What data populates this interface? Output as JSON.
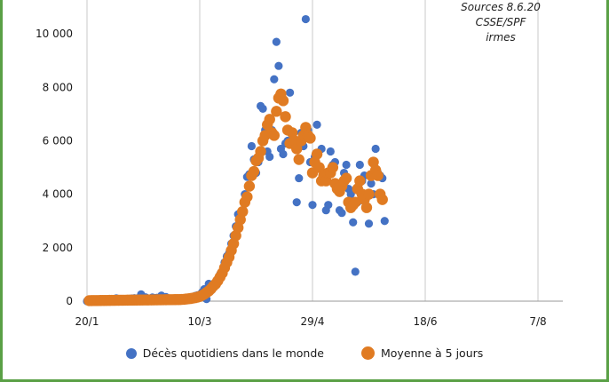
{
  "source_note": [
    "Sources 8.6.20",
    "CSSE/SPF",
    "irmes"
  ],
  "colors": {
    "daily": "#4472c4",
    "avg": "#e07b22",
    "grid": "#c8c8c8",
    "frame": "#5aa046"
  },
  "chart_data": {
    "type": "scatter",
    "title": "",
    "xlabel": "",
    "ylabel": "",
    "x_ticks": [
      "20/1",
      "10/3",
      "29/4",
      "18/6",
      "7/8"
    ],
    "y_ticks": [
      "0",
      "2 000",
      "4 000",
      "6 000",
      "8 000",
      "10 000"
    ],
    "xlim": [
      "2020-01-20",
      "2020-08-07"
    ],
    "ylim": [
      0,
      11000
    ],
    "grid": {
      "vertical": true,
      "horizontal": false
    },
    "legend": {
      "position": "bottom"
    },
    "series": [
      {
        "name": "Décès quotidiens dans le monde",
        "marker": "small-dot",
        "points": [
          [
            "2020-01-20",
            0
          ],
          [
            "2020-01-21",
            0
          ],
          [
            "2020-01-22",
            17
          ],
          [
            "2020-01-23",
            1
          ],
          [
            "2020-01-24",
            8
          ],
          [
            "2020-01-25",
            16
          ],
          [
            "2020-01-26",
            14
          ],
          [
            "2020-01-27",
            26
          ],
          [
            "2020-01-28",
            49
          ],
          [
            "2020-01-29",
            2
          ],
          [
            "2020-01-30",
            38
          ],
          [
            "2020-01-31",
            42
          ],
          [
            "2020-02-01",
            46
          ],
          [
            "2020-02-02",
            103
          ],
          [
            "2020-02-03",
            64
          ],
          [
            "2020-02-04",
            66
          ],
          [
            "2020-02-05",
            72
          ],
          [
            "2020-02-06",
            70
          ],
          [
            "2020-02-07",
            85
          ],
          [
            "2020-02-08",
            87
          ],
          [
            "2020-02-09",
            100
          ],
          [
            "2020-02-10",
            107
          ],
          [
            "2020-02-11",
            100
          ],
          [
            "2020-02-12",
            5
          ],
          [
            "2020-02-13",
            253
          ],
          [
            "2020-02-14",
            152
          ],
          [
            "2020-02-15",
            143
          ],
          [
            "2020-02-16",
            104
          ],
          [
            "2020-02-17",
            98
          ],
          [
            "2020-02-18",
            139
          ],
          [
            "2020-02-19",
            115
          ],
          [
            "2020-02-20",
            125
          ],
          [
            "2020-02-21",
            4
          ],
          [
            "2020-02-22",
            207
          ],
          [
            "2020-02-23",
            12
          ],
          [
            "2020-02-24",
            155
          ],
          [
            "2020-02-25",
            80
          ],
          [
            "2020-02-26",
            60
          ],
          [
            "2020-02-27",
            44
          ],
          [
            "2020-02-28",
            60
          ],
          [
            "2020-02-29",
            62
          ],
          [
            "2020-03-01",
            58
          ],
          [
            "2020-03-02",
            72
          ],
          [
            "2020-03-03",
            69
          ],
          [
            "2020-03-04",
            85
          ],
          [
            "2020-03-05",
            100
          ],
          [
            "2020-03-06",
            104
          ],
          [
            "2020-03-07",
            110
          ],
          [
            "2020-03-08",
            198
          ],
          [
            "2020-03-09",
            220
          ],
          [
            "2020-03-10",
            208
          ],
          [
            "2020-03-11",
            330
          ],
          [
            "2020-03-12",
            450
          ],
          [
            "2020-03-13",
            80
          ],
          [
            "2020-03-14",
            650
          ],
          [
            "2020-03-15",
            390
          ],
          [
            "2020-03-16",
            550
          ],
          [
            "2020-03-17",
            700
          ],
          [
            "2020-03-18",
            800
          ],
          [
            "2020-03-19",
            1000
          ],
          [
            "2020-03-20",
            1100
          ],
          [
            "2020-03-21",
            1450
          ],
          [
            "2020-03-22",
            1680
          ],
          [
            "2020-03-23",
            1800
          ],
          [
            "2020-03-24",
            2150
          ],
          [
            "2020-03-25",
            2450
          ],
          [
            "2020-03-26",
            2800
          ],
          [
            "2020-03-27",
            3250
          ],
          [
            "2020-03-28",
            3300
          ],
          [
            "2020-03-29",
            3400
          ],
          [
            "2020-03-30",
            4000
          ],
          [
            "2020-03-31",
            4650
          ],
          [
            "2020-04-01",
            4750
          ],
          [
            "2020-04-02",
            5800
          ],
          [
            "2020-04-03",
            5300
          ],
          [
            "2020-04-04",
            4800
          ],
          [
            "2020-04-05",
            5200
          ],
          [
            "2020-04-06",
            7300
          ],
          [
            "2020-04-07",
            7200
          ],
          [
            "2020-04-08",
            6400
          ],
          [
            "2020-04-09",
            5600
          ],
          [
            "2020-04-10",
            5400
          ],
          [
            "2020-04-11",
            6400
          ],
          [
            "2020-04-12",
            8300
          ],
          [
            "2020-04-13",
            9700
          ],
          [
            "2020-04-14",
            8800
          ],
          [
            "2020-04-15",
            5700
          ],
          [
            "2020-04-16",
            5500
          ],
          [
            "2020-04-17",
            5900
          ],
          [
            "2020-04-18",
            6000
          ],
          [
            "2020-04-19",
            7800
          ],
          [
            "2020-04-20",
            6000
          ],
          [
            "2020-04-21",
            5900
          ],
          [
            "2020-04-22",
            3700
          ],
          [
            "2020-04-23",
            4600
          ],
          [
            "2020-04-24",
            6300
          ],
          [
            "2020-04-25",
            5800
          ],
          [
            "2020-04-26",
            10550
          ],
          [
            "2020-04-27",
            6400
          ],
          [
            "2020-04-28",
            5200
          ],
          [
            "2020-04-29",
            3600
          ],
          [
            "2020-04-30",
            5400
          ],
          [
            "2020-05-01",
            6600
          ],
          [
            "2020-05-02",
            5000
          ],
          [
            "2020-05-03",
            5700
          ],
          [
            "2020-05-04",
            4500
          ],
          [
            "2020-05-05",
            3400
          ],
          [
            "2020-05-06",
            3600
          ],
          [
            "2020-05-07",
            5600
          ],
          [
            "2020-05-08",
            5100
          ],
          [
            "2020-05-09",
            5200
          ],
          [
            "2020-05-10",
            4400
          ],
          [
            "2020-05-11",
            3400
          ],
          [
            "2020-05-12",
            3300
          ],
          [
            "2020-05-13",
            4800
          ],
          [
            "2020-05-14",
            5100
          ],
          [
            "2020-05-15",
            4200
          ],
          [
            "2020-05-16",
            4000
          ],
          [
            "2020-05-17",
            2950
          ],
          [
            "2020-05-18",
            1100
          ],
          [
            "2020-05-19",
            3700
          ],
          [
            "2020-05-20",
            5100
          ],
          [
            "2020-05-21",
            4500
          ],
          [
            "2020-05-22",
            4700
          ],
          [
            "2020-05-23",
            4000
          ],
          [
            "2020-05-24",
            2900
          ],
          [
            "2020-05-25",
            4400
          ],
          [
            "2020-05-26",
            4000
          ],
          [
            "2020-05-27",
            5700
          ],
          [
            "2020-05-28",
            4800
          ],
          [
            "2020-05-29",
            4700
          ],
          [
            "2020-05-30",
            4600
          ],
          [
            "2020-05-31",
            3000
          ]
        ]
      },
      {
        "name": "Moyenne à 5 jours",
        "marker": "large-dot",
        "points": [
          [
            "2020-01-21",
            20
          ],
          [
            "2020-01-22",
            21
          ],
          [
            "2020-01-23",
            22
          ],
          [
            "2020-01-24",
            23
          ],
          [
            "2020-01-25",
            24
          ],
          [
            "2020-01-26",
            25
          ],
          [
            "2020-01-27",
            26
          ],
          [
            "2020-01-28",
            27
          ],
          [
            "2020-01-29",
            28
          ],
          [
            "2020-01-30",
            29
          ],
          [
            "2020-01-31",
            30
          ],
          [
            "2020-02-01",
            31
          ],
          [
            "2020-02-02",
            32
          ],
          [
            "2020-02-03",
            33
          ],
          [
            "2020-02-04",
            34
          ],
          [
            "2020-02-05",
            35
          ],
          [
            "2020-02-06",
            36
          ],
          [
            "2020-02-07",
            37
          ],
          [
            "2020-02-08",
            38
          ],
          [
            "2020-02-09",
            39
          ],
          [
            "2020-02-10",
            40
          ],
          [
            "2020-02-11",
            41
          ],
          [
            "2020-02-12",
            42
          ],
          [
            "2020-02-13",
            43
          ],
          [
            "2020-02-14",
            44
          ],
          [
            "2020-02-15",
            45
          ],
          [
            "2020-02-16",
            46
          ],
          [
            "2020-02-17",
            47
          ],
          [
            "2020-02-18",
            48
          ],
          [
            "2020-02-19",
            49
          ],
          [
            "2020-02-20",
            50
          ],
          [
            "2020-02-21",
            51
          ],
          [
            "2020-02-22",
            52
          ],
          [
            "2020-02-23",
            53
          ],
          [
            "2020-02-24",
            54
          ],
          [
            "2020-02-25",
            55
          ],
          [
            "2020-02-26",
            56
          ],
          [
            "2020-02-27",
            57
          ],
          [
            "2020-02-28",
            58
          ],
          [
            "2020-02-29",
            59
          ],
          [
            "2020-03-01",
            60
          ],
          [
            "2020-03-02",
            65
          ],
          [
            "2020-03-03",
            70
          ],
          [
            "2020-03-04",
            80
          ],
          [
            "2020-03-05",
            90
          ],
          [
            "2020-03-06",
            100
          ],
          [
            "2020-03-07",
            115
          ],
          [
            "2020-03-08",
            130
          ],
          [
            "2020-03-09",
            150
          ],
          [
            "2020-03-10",
            175
          ],
          [
            "2020-03-11",
            215
          ],
          [
            "2020-03-12",
            260
          ],
          [
            "2020-03-13",
            320
          ],
          [
            "2020-03-14",
            380
          ],
          [
            "2020-03-15",
            460
          ],
          [
            "2020-03-16",
            560
          ],
          [
            "2020-03-17",
            640
          ],
          [
            "2020-03-18",
            760
          ],
          [
            "2020-03-19",
            900
          ],
          [
            "2020-03-20",
            1050
          ],
          [
            "2020-03-21",
            1250
          ],
          [
            "2020-03-22",
            1450
          ],
          [
            "2020-03-23",
            1650
          ],
          [
            "2020-03-24",
            1900
          ],
          [
            "2020-03-25",
            2150
          ],
          [
            "2020-03-26",
            2450
          ],
          [
            "2020-03-27",
            2750
          ],
          [
            "2020-03-28",
            3050
          ],
          [
            "2020-03-29",
            3350
          ],
          [
            "2020-03-30",
            3700
          ],
          [
            "2020-03-31",
            3900
          ],
          [
            "2020-04-01",
            4300
          ],
          [
            "2020-04-02",
            4700
          ],
          [
            "2020-04-03",
            4850
          ],
          [
            "2020-04-04",
            5250
          ],
          [
            "2020-04-05",
            5350
          ],
          [
            "2020-04-06",
            5600
          ],
          [
            "2020-04-07",
            6000
          ],
          [
            "2020-04-08",
            6200
          ],
          [
            "2020-04-09",
            6600
          ],
          [
            "2020-04-10",
            6800
          ],
          [
            "2020-04-11",
            6300
          ],
          [
            "2020-04-12",
            6200
          ],
          [
            "2020-04-13",
            7100
          ],
          [
            "2020-04-14",
            7600
          ],
          [
            "2020-04-15",
            7750
          ],
          [
            "2020-04-16",
            7500
          ],
          [
            "2020-04-17",
            6900
          ],
          [
            "2020-04-18",
            6400
          ],
          [
            "2020-04-19",
            5900
          ],
          [
            "2020-04-20",
            6300
          ],
          [
            "2020-04-21",
            6000
          ],
          [
            "2020-04-22",
            5700
          ],
          [
            "2020-04-23",
            5300
          ],
          [
            "2020-04-24",
            6000
          ],
          [
            "2020-04-25",
            6200
          ],
          [
            "2020-04-26",
            6500
          ],
          [
            "2020-04-27",
            6200
          ],
          [
            "2020-04-28",
            6100
          ],
          [
            "2020-04-29",
            4800
          ],
          [
            "2020-04-30",
            5200
          ],
          [
            "2020-05-01",
            5500
          ],
          [
            "2020-05-02",
            5000
          ],
          [
            "2020-05-03",
            4500
          ],
          [
            "2020-05-04",
            4700
          ],
          [
            "2020-05-05",
            4500
          ],
          [
            "2020-05-06",
            4800
          ],
          [
            "2020-05-07",
            4800
          ],
          [
            "2020-05-08",
            5000
          ],
          [
            "2020-05-09",
            4400
          ],
          [
            "2020-05-10",
            4200
          ],
          [
            "2020-05-11",
            4100
          ],
          [
            "2020-05-12",
            4300
          ],
          [
            "2020-05-13",
            4500
          ],
          [
            "2020-05-14",
            4600
          ],
          [
            "2020-05-15",
            3700
          ],
          [
            "2020-05-16",
            3500
          ],
          [
            "2020-05-17",
            3600
          ],
          [
            "2020-05-18",
            3700
          ],
          [
            "2020-05-19",
            4200
          ],
          [
            "2020-05-20",
            4500
          ],
          [
            "2020-05-21",
            4000
          ],
          [
            "2020-05-22",
            3800
          ],
          [
            "2020-05-23",
            3500
          ],
          [
            "2020-05-24",
            4000
          ],
          [
            "2020-05-25",
            4700
          ],
          [
            "2020-05-26",
            5200
          ],
          [
            "2020-05-27",
            4900
          ],
          [
            "2020-05-28",
            4700
          ],
          [
            "2020-05-29",
            4000
          ],
          [
            "2020-05-30",
            3800
          ]
        ]
      }
    ]
  }
}
